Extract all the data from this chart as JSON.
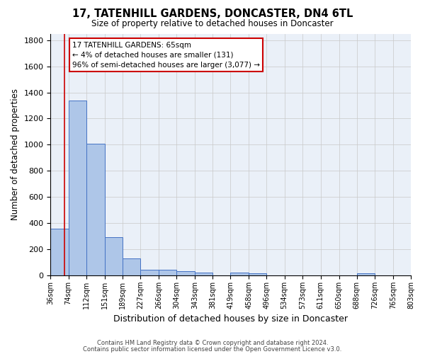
{
  "title1": "17, TATENHILL GARDENS, DONCASTER, DN4 6TL",
  "title2": "Size of property relative to detached houses in Doncaster",
  "xlabel": "Distribution of detached houses by size in Doncaster",
  "ylabel": "Number of detached properties",
  "footer1": "Contains HM Land Registry data © Crown copyright and database right 2024.",
  "footer2": "Contains public sector information licensed under the Open Government Licence v3.0.",
  "bins": [
    36,
    74,
    112,
    151,
    189,
    227,
    266,
    304,
    343,
    381,
    419,
    458,
    496,
    534,
    573,
    611,
    650,
    688,
    726,
    765,
    803
  ],
  "bar_heights": [
    360,
    1340,
    1010,
    290,
    130,
    45,
    45,
    30,
    20,
    0,
    20,
    15,
    0,
    0,
    0,
    0,
    0,
    15,
    0,
    0
  ],
  "bar_color": "#aec6e8",
  "bar_edge_color": "#4472c4",
  "bg_color": "#eaf0f8",
  "grid_color": "#c8c8c8",
  "property_line_x": 65,
  "property_line_color": "#cc0000",
  "annotation_text": "17 TATENHILL GARDENS: 65sqm\n← 4% of detached houses are smaller (131)\n96% of semi-detached houses are larger (3,077) →",
  "annotation_box_color": "#ffffff",
  "annotation_box_edge_color": "#cc0000",
  "ylim": [
    0,
    1850
  ],
  "yticks": [
    0,
    200,
    400,
    600,
    800,
    1000,
    1200,
    1400,
    1600,
    1800
  ],
  "fig_width": 6.0,
  "fig_height": 5.0,
  "dpi": 100
}
